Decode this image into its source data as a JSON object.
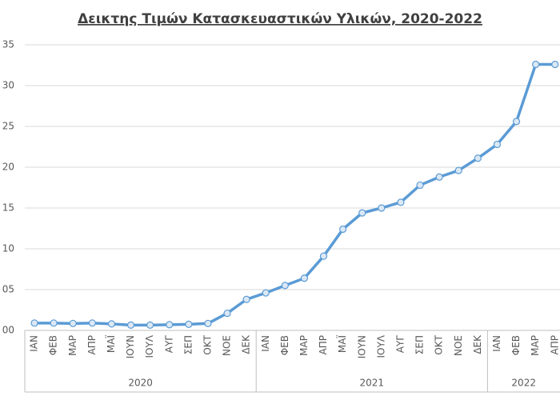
{
  "chart_data": {
    "type": "line",
    "title": "Δεικτης Τιμών Κατασκευαστικών Υλικών, 2020-2022",
    "categories": [
      "ΙΑΝ",
      "ΦΕΒ",
      "ΜΑΡ",
      "ΑΠΡ",
      "ΜΑΪ",
      "ΙΟΥΝ",
      "ΙΟΥΛ",
      "ΑΥΓ",
      "ΣΕΠ",
      "ΟΚΤ",
      "ΝΟΕ",
      "ΔΕΚ",
      "ΙΑΝ",
      "ΦΕΒ",
      "ΜΑΡ",
      "ΑΠΡ",
      "ΜΑΪ",
      "ΙΟΥΝ",
      "ΙΟΥΛ",
      "ΑΥΓ",
      "ΣΕΠ",
      "ΟΚΤ",
      "ΝΟΕ",
      "ΔΕΚ",
      "ΙΑΝ",
      "ΦΕΒ",
      "ΜΑΡ",
      "ΑΠΡ"
    ],
    "groups": [
      {
        "label": "2020",
        "count": 12
      },
      {
        "label": "2021",
        "count": 12
      },
      {
        "label": "2022",
        "count": 4
      }
    ],
    "values": [
      0.9,
      0.9,
      0.85,
      0.9,
      0.8,
      0.65,
      0.65,
      0.7,
      0.75,
      0.85,
      2.1,
      3.8,
      4.6,
      5.5,
      6.4,
      9.1,
      12.4,
      14.4,
      15.0,
      15.7,
      17.8,
      18.8,
      19.6,
      21.1,
      22.8,
      25.6,
      32.6,
      32.6
    ],
    "color": "#5b9bd5",
    "ylim": [
      0,
      35
    ],
    "yticks": [
      {
        "value": 0,
        "label": "00"
      },
      {
        "value": 5,
        "label": "05"
      },
      10,
      15,
      20,
      25,
      30,
      35
    ],
    "grid": true
  }
}
